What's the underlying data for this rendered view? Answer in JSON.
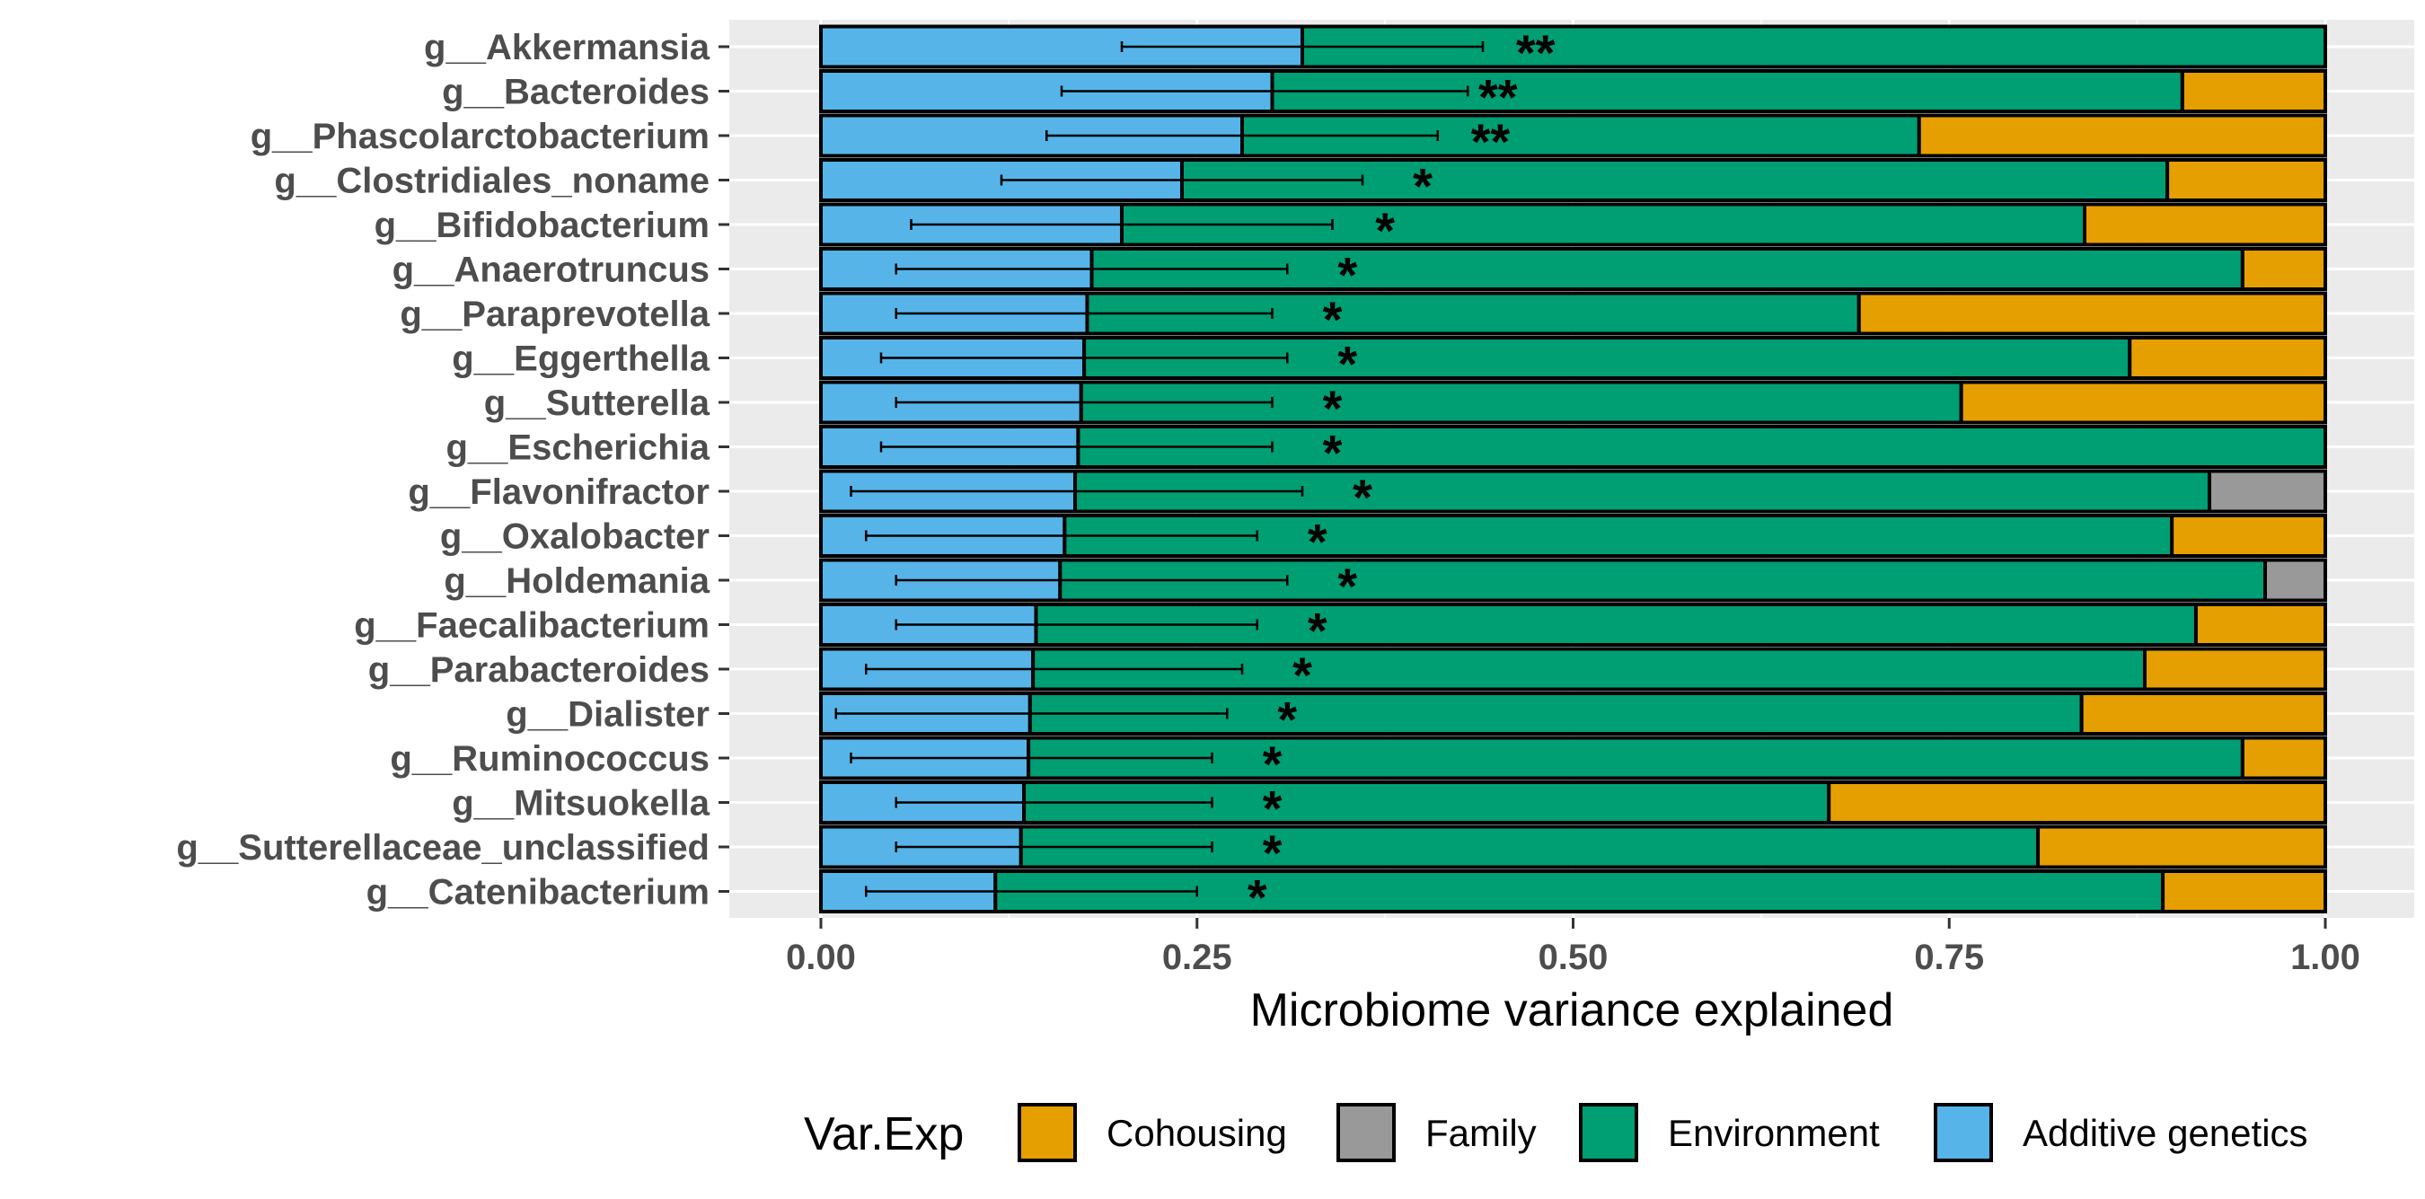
{
  "chart_data": {
    "type": "bar",
    "orientation": "horizontal",
    "stacked": true,
    "title": "",
    "xlabel": "Microbiome variance explained",
    "ylabel": "",
    "xlim": [
      0,
      1
    ],
    "xticks": [
      "0.00",
      "0.25",
      "0.50",
      "0.75",
      "1.00"
    ],
    "categories": [
      "g__Akkermansia",
      "g__Bacteroides",
      "g__Phascolarctobacterium",
      "g__Clostridiales_noname",
      "g__Bifidobacterium",
      "g__Anaerotruncus",
      "g__Paraprevotella",
      "g__Eggerthella",
      "g__Sutterella",
      "g__Escherichia",
      "g__Flavonifractor",
      "g__Oxalobacter",
      "g__Holdemania",
      "g__Faecalibacterium",
      "g__Parabacteroides",
      "g__Dialister",
      "g__Ruminococcus",
      "g__Mitsuokella",
      "g__Sutterellaceae_unclassified",
      "g__Catenibacterium"
    ],
    "series": [
      {
        "name": "Additive genetics",
        "color": "#56B4E9",
        "values": [
          0.32,
          0.3,
          0.28,
          0.24,
          0.2,
          0.18,
          0.177,
          0.175,
          0.173,
          0.171,
          0.169,
          0.162,
          0.159,
          0.143,
          0.141,
          0.139,
          0.138,
          0.135,
          0.133,
          0.116
        ]
      },
      {
        "name": "Environment",
        "color": "#009E73",
        "values": [
          0.68,
          0.605,
          0.45,
          0.655,
          0.64,
          0.765,
          0.513,
          0.695,
          0.585,
          0.829,
          0.754,
          0.736,
          0.801,
          0.771,
          0.739,
          0.699,
          0.807,
          0.535,
          0.676,
          0.776
        ]
      },
      {
        "name": "Family",
        "color": "#999999",
        "values": [
          0,
          0,
          0,
          0,
          0,
          0,
          0,
          0,
          0,
          0,
          0.077,
          0,
          0.04,
          0,
          0,
          0,
          0,
          0,
          0,
          0
        ]
      },
      {
        "name": "Cohousing",
        "color": "#E69F00",
        "values": [
          0,
          0.095,
          0.27,
          0.105,
          0.16,
          0.055,
          0.31,
          0.13,
          0.242,
          0,
          0,
          0.102,
          0,
          0.086,
          0.12,
          0.162,
          0.055,
          0.33,
          0.191,
          0.108
        ]
      }
    ],
    "error_bars": {
      "series": "Additive genetics",
      "low": [
        0.2,
        0.16,
        0.15,
        0.12,
        0.06,
        0.05,
        0.05,
        0.04,
        0.05,
        0.04,
        0.02,
        0.03,
        0.05,
        0.05,
        0.03,
        0.01,
        0.02,
        0.05,
        0.05,
        0.03
      ],
      "high": [
        0.44,
        0.43,
        0.41,
        0.36,
        0.34,
        0.31,
        0.3,
        0.31,
        0.3,
        0.3,
        0.32,
        0.29,
        0.31,
        0.29,
        0.28,
        0.27,
        0.26,
        0.26,
        0.26,
        0.25
      ]
    },
    "significance": {
      "labels": [
        "**",
        "**",
        "**",
        "*",
        "*",
        "*",
        "*",
        "*",
        "*",
        "*",
        "*",
        "*",
        "*",
        "*",
        "*",
        "*",
        "*",
        "*",
        "*",
        "*"
      ],
      "x": [
        0.475,
        0.45,
        0.445,
        0.4,
        0.375,
        0.35,
        0.34,
        0.35,
        0.34,
        0.34,
        0.36,
        0.33,
        0.35,
        0.33,
        0.32,
        0.31,
        0.3,
        0.3,
        0.3,
        0.29
      ]
    },
    "legend": {
      "title": "Var.Exp",
      "position": "bottom",
      "items": [
        "Cohousing",
        "Family",
        "Environment",
        "Additive genetics"
      ]
    },
    "panel_background": "#EBEBEB",
    "gridlines": true
  }
}
